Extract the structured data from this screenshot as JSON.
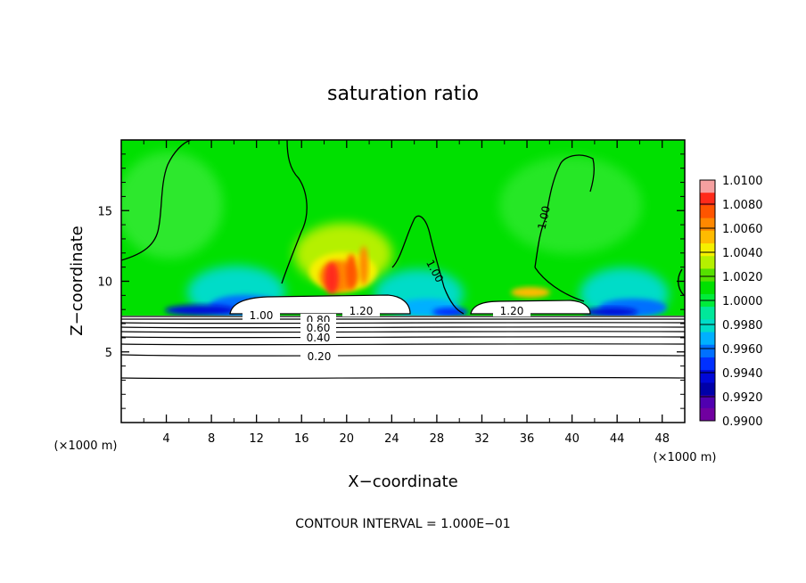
{
  "chart_data": {
    "type": "heatmap",
    "title": "saturation ratio",
    "xlabel": "X−coordinate",
    "ylabel": "Z−coordinate",
    "x_unit_label": "(×1000 m)",
    "y_unit_label": "(×1000 m)",
    "xlim": [
      0,
      50
    ],
    "ylim": [
      0,
      20
    ],
    "x_ticks": [
      4,
      8,
      12,
      16,
      20,
      24,
      28,
      32,
      36,
      40,
      44,
      48
    ],
    "y_ticks": [
      5,
      10,
      15
    ],
    "colorbar": {
      "labels": [
        "1.0100",
        "1.0080",
        "1.0060",
        "1.0040",
        "1.0020",
        "1.0000",
        "0.9980",
        "0.9960",
        "0.9940",
        "0.9920",
        "0.9900"
      ],
      "min": 0.99,
      "max": 1.01,
      "colors": [
        "#f5a0a0",
        "#ff2a1a",
        "#ff5500",
        "#ff8800",
        "#ffbb00",
        "#f5f000",
        "#b5f000",
        "#55e000",
        "#00e000",
        "#00ec3a",
        "#00e89a",
        "#00dcc8",
        "#00b0ff",
        "#0070ff",
        "#0030ff",
        "#0008d8",
        "#0000a8",
        "#5000b0",
        "#7000a0"
      ]
    },
    "contour_labels": [
      "1.00",
      "1.00",
      "1.00",
      "1.20",
      "1.20",
      "0.80",
      "0.60",
      "0.40",
      "0.20"
    ],
    "contour_interval_text": "CONTOUR INTERVAL = 1.000E−01"
  }
}
